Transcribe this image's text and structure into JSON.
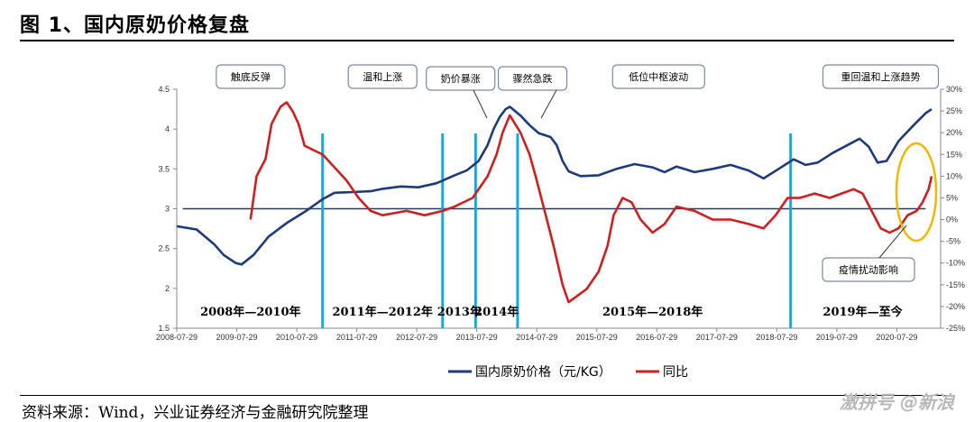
{
  "figure_title": "图 1、国内原奶价格复盘",
  "source": "资料来源：Wind，兴业证券经济与金融研究院整理",
  "watermark": "激拼号 @新浪",
  "colors": {
    "price_line": "#1f3a7a",
    "yoy_line": "#cc1f1f",
    "divider": "#16a9e0",
    "reference_line": "#1f3a7a",
    "highlight_ellipse": "#f2b705"
  },
  "chart_data": {
    "type": "line",
    "x_tick_labels": [
      "2008-07-29",
      "2009-07-29",
      "2010-07-29",
      "2011-07-29",
      "2012-07-29",
      "2013-07-29",
      "2014-07-29",
      "2015-07-29",
      "2016-07-29",
      "2017-07-29",
      "2018-07-29",
      "2019-07-29",
      "2020-07-29"
    ],
    "xlim": [
      2008.57,
      2021.3
    ],
    "y_left": {
      "ticks": [
        "4.5",
        "4",
        "3.5",
        "3",
        "2.5",
        "2",
        "1.5"
      ],
      "lim": [
        1.5,
        4.5
      ]
    },
    "y_right": {
      "ticks": [
        "30%",
        "25%",
        "20%",
        "15%",
        "10%",
        "5%",
        "0%",
        "-5%",
        "-10%",
        "-15%",
        "-20%",
        "-25%"
      ],
      "lim": [
        -25,
        30
      ]
    },
    "reference_value": 3.0,
    "dividers": [
      2011.0,
      2013.0,
      2013.55,
      2014.25,
      2018.8
    ],
    "series": [
      {
        "name": "国内原奶价格（元/KG）",
        "axis": "left",
        "points": [
          [
            2008.57,
            2.78
          ],
          [
            2008.9,
            2.74
          ],
          [
            2009.2,
            2.55
          ],
          [
            2009.35,
            2.42
          ],
          [
            2009.55,
            2.32
          ],
          [
            2009.65,
            2.3
          ],
          [
            2009.85,
            2.42
          ],
          [
            2010.1,
            2.65
          ],
          [
            2010.4,
            2.82
          ],
          [
            2010.7,
            2.96
          ],
          [
            2011.0,
            3.12
          ],
          [
            2011.2,
            3.2
          ],
          [
            2011.5,
            3.21
          ],
          [
            2011.8,
            3.22
          ],
          [
            2012.0,
            3.25
          ],
          [
            2012.3,
            3.28
          ],
          [
            2012.6,
            3.27
          ],
          [
            2012.9,
            3.32
          ],
          [
            2013.2,
            3.42
          ],
          [
            2013.4,
            3.48
          ],
          [
            2013.6,
            3.6
          ],
          [
            2013.75,
            3.8
          ],
          [
            2013.85,
            4.0
          ],
          [
            2013.95,
            4.15
          ],
          [
            2014.05,
            4.25
          ],
          [
            2014.12,
            4.28
          ],
          [
            2014.3,
            4.17
          ],
          [
            2014.45,
            4.05
          ],
          [
            2014.6,
            3.95
          ],
          [
            2014.8,
            3.9
          ],
          [
            2014.9,
            3.8
          ],
          [
            2015.0,
            3.6
          ],
          [
            2015.1,
            3.47
          ],
          [
            2015.3,
            3.41
          ],
          [
            2015.6,
            3.42
          ],
          [
            2015.9,
            3.5
          ],
          [
            2016.2,
            3.56
          ],
          [
            2016.5,
            3.52
          ],
          [
            2016.7,
            3.46
          ],
          [
            2016.9,
            3.53
          ],
          [
            2017.2,
            3.46
          ],
          [
            2017.5,
            3.5
          ],
          [
            2017.8,
            3.55
          ],
          [
            2018.1,
            3.48
          ],
          [
            2018.35,
            3.38
          ],
          [
            2018.6,
            3.5
          ],
          [
            2018.85,
            3.62
          ],
          [
            2019.05,
            3.55
          ],
          [
            2019.25,
            3.58
          ],
          [
            2019.5,
            3.7
          ],
          [
            2019.75,
            3.8
          ],
          [
            2019.95,
            3.88
          ],
          [
            2020.1,
            3.78
          ],
          [
            2020.25,
            3.58
          ],
          [
            2020.4,
            3.6
          ],
          [
            2020.6,
            3.85
          ],
          [
            2020.85,
            4.05
          ],
          [
            2021.05,
            4.2
          ],
          [
            2021.15,
            4.25
          ]
        ]
      },
      {
        "name": "同比",
        "axis": "right",
        "points": [
          [
            2009.8,
            0
          ],
          [
            2009.9,
            10
          ],
          [
            2010.05,
            14
          ],
          [
            2010.15,
            22
          ],
          [
            2010.3,
            26
          ],
          [
            2010.4,
            27
          ],
          [
            2010.5,
            25
          ],
          [
            2010.6,
            22
          ],
          [
            2010.7,
            17
          ],
          [
            2010.85,
            16
          ],
          [
            2011.0,
            15
          ],
          [
            2011.2,
            12
          ],
          [
            2011.4,
            9
          ],
          [
            2011.6,
            5
          ],
          [
            2011.8,
            2
          ],
          [
            2012.0,
            1
          ],
          [
            2012.4,
            2
          ],
          [
            2012.7,
            1
          ],
          [
            2013.0,
            2
          ],
          [
            2013.2,
            3
          ],
          [
            2013.5,
            5
          ],
          [
            2013.75,
            10
          ],
          [
            2013.9,
            15
          ],
          [
            2014.0,
            20
          ],
          [
            2014.12,
            24
          ],
          [
            2014.3,
            20
          ],
          [
            2014.45,
            15
          ],
          [
            2014.55,
            10
          ],
          [
            2014.7,
            2
          ],
          [
            2014.85,
            -6
          ],
          [
            2015.0,
            -15
          ],
          [
            2015.1,
            -19
          ],
          [
            2015.2,
            -18
          ],
          [
            2015.4,
            -16
          ],
          [
            2015.6,
            -12
          ],
          [
            2015.75,
            -6
          ],
          [
            2015.85,
            1
          ],
          [
            2016.0,
            5
          ],
          [
            2016.15,
            4
          ],
          [
            2016.3,
            0
          ],
          [
            2016.5,
            -3
          ],
          [
            2016.7,
            -1
          ],
          [
            2016.9,
            3
          ],
          [
            2017.2,
            2
          ],
          [
            2017.5,
            0
          ],
          [
            2017.8,
            0
          ],
          [
            2018.1,
            -1
          ],
          [
            2018.35,
            -2
          ],
          [
            2018.55,
            1
          ],
          [
            2018.75,
            5
          ],
          [
            2018.95,
            5
          ],
          [
            2019.2,
            6
          ],
          [
            2019.45,
            5
          ],
          [
            2019.65,
            6
          ],
          [
            2019.85,
            7
          ],
          [
            2020.0,
            6
          ],
          [
            2020.15,
            2
          ],
          [
            2020.3,
            -2
          ],
          [
            2020.45,
            -3
          ],
          [
            2020.6,
            -2
          ],
          [
            2020.75,
            1
          ],
          [
            2020.9,
            2
          ],
          [
            2021.0,
            4
          ],
          [
            2021.1,
            7
          ],
          [
            2021.15,
            10
          ]
        ]
      }
    ],
    "period_labels": [
      {
        "text": "2008年—2010年",
        "x": 2009.8
      },
      {
        "text": "2011年—2012年",
        "x": 2012.0
      },
      {
        "text": "2013年",
        "x": 2013.28
      },
      {
        "text": "2014年",
        "x": 2013.9
      },
      {
        "text": "2015年—2018年",
        "x": 2016.5
      },
      {
        "text": "2019年—至今",
        "x": 2020.0
      }
    ],
    "phase_labels": [
      {
        "text": "触底反弹",
        "x": 2009.8
      },
      {
        "text": "温和上涨",
        "x": 2012.0
      },
      {
        "text": "奶价暴涨",
        "x": 2013.3
      },
      {
        "text": "骤然急跌",
        "x": 2014.5
      },
      {
        "text": "低位中枢波动",
        "x": 2016.6
      },
      {
        "text": "重回温和上涨趋势",
        "x": 2020.3
      },
      {
        "text": "疫情扰动影响",
        "x": 2020.2
      }
    ],
    "legend_position": "bottom-center"
  }
}
